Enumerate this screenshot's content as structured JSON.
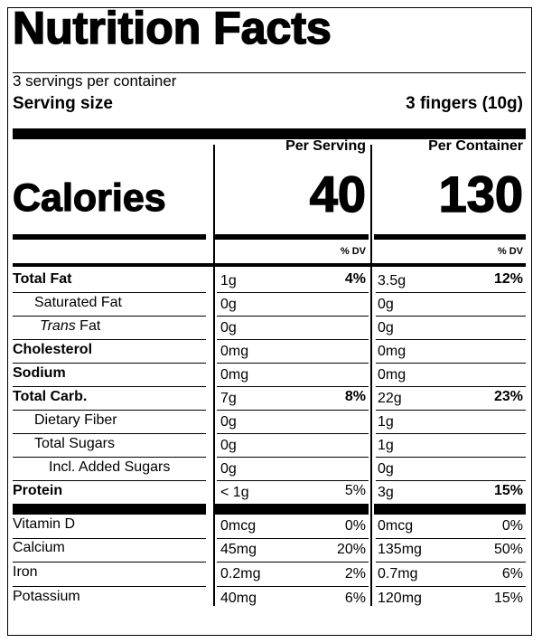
{
  "title": "Nutrition Facts",
  "servings_per_container": "3 servings per container",
  "serving_size_label": "Serving size",
  "serving_size_value": "3 fingers (10g)",
  "col_per_serving": "Per Serving",
  "col_per_container": "Per Container",
  "calories_label": "Calories",
  "calories_per_serving": "40",
  "calories_per_container": "130",
  "dv_label": "% DV",
  "nutrients": [
    {
      "name": "Total Fat",
      "bold": true,
      "indent": 0,
      "serving_amount": "1g",
      "serving_dv": "4%",
      "container_amount": "3.5g",
      "container_dv": "12%"
    },
    {
      "name": "Saturated Fat",
      "bold": false,
      "indent": 1,
      "serving_amount": "0g",
      "serving_dv": "",
      "container_amount": "0g",
      "container_dv": ""
    },
    {
      "name": "Trans Fat",
      "bold": false,
      "indent": 2,
      "italic_prefix": "Trans",
      "suffix": " Fat",
      "serving_amount": "0g",
      "serving_dv": "",
      "container_amount": "0g",
      "container_dv": ""
    },
    {
      "name": "Cholesterol",
      "bold": true,
      "indent": 0,
      "serving_amount": "0mg",
      "serving_dv": "",
      "container_amount": "0mg",
      "container_dv": ""
    },
    {
      "name": "Sodium",
      "bold": true,
      "indent": 0,
      "serving_amount": "0mg",
      "serving_dv": "",
      "container_amount": "0mg",
      "container_dv": ""
    },
    {
      "name": "Total Carb.",
      "bold": true,
      "indent": 0,
      "serving_amount": "7g",
      "serving_dv": "8%",
      "container_amount": "22g",
      "container_dv": "23%"
    },
    {
      "name": "Dietary Fiber",
      "bold": false,
      "indent": 1,
      "serving_amount": "0g",
      "serving_dv": "",
      "container_amount": "1g",
      "container_dv": ""
    },
    {
      "name": "Total Sugars",
      "bold": false,
      "indent": 1,
      "serving_amount": "0g",
      "serving_dv": "",
      "container_amount": "1g",
      "container_dv": ""
    },
    {
      "name": "Incl. Added Sugars",
      "bold": false,
      "indent": 2,
      "serving_amount": "0g",
      "serving_dv": "",
      "container_amount": "0g",
      "container_dv": ""
    },
    {
      "name": "Protein",
      "bold": true,
      "indent": 0,
      "serving_amount": "< 1g",
      "serving_dv": "5%",
      "container_amount": "3g",
      "container_dv": "15%"
    }
  ],
  "vitamins": [
    {
      "name": "Vitamin D",
      "serving_amount": "0mcg",
      "serving_dv": "0%",
      "container_amount": "0mcg",
      "container_dv": "0%"
    },
    {
      "name": "Calcium",
      "serving_amount": "45mg",
      "serving_dv": "20%",
      "container_amount": "135mg",
      "container_dv": "50%"
    },
    {
      "name": "Iron",
      "serving_amount": "0.2mg",
      "serving_dv": "2%",
      "container_amount": "0.7mg",
      "container_dv": "6%"
    },
    {
      "name": "Potassium",
      "serving_amount": "40mg",
      "serving_dv": "6%",
      "container_amount": "120mg",
      "container_dv": "15%"
    }
  ]
}
